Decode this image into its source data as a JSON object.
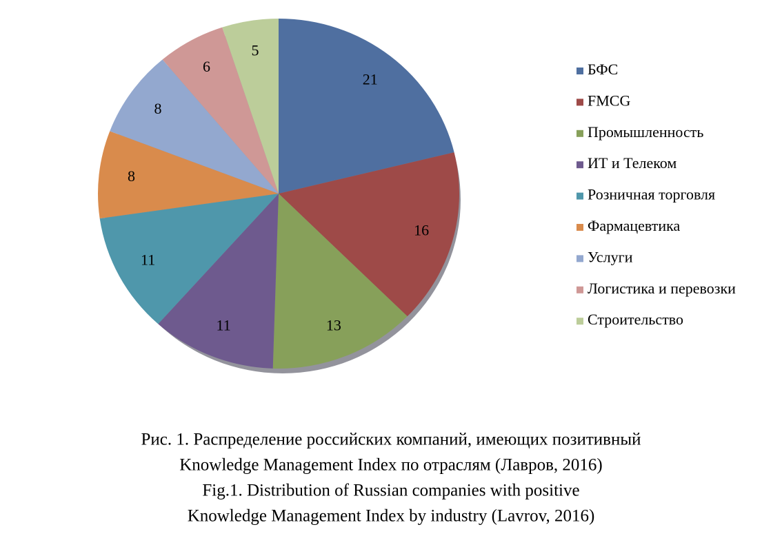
{
  "chart_data": {
    "type": "pie",
    "categories": [
      "БФС",
      "FMCG",
      "Промышленность",
      "ИТ и Телеком",
      "Розничная торговля",
      "Фармацевтика",
      "Услуги",
      "Логистика и перевозки",
      "Строительство"
    ],
    "values": [
      21,
      16,
      13,
      11,
      11,
      8,
      8,
      6,
      5
    ],
    "colors": [
      "#4f6fa0",
      "#9e4a48",
      "#87a05a",
      "#6e5a8e",
      "#4f97ab",
      "#d98b4c",
      "#93a8cf",
      "#cf9896",
      "#bccd9a"
    ],
    "legend": "right",
    "caption": [
      "Рис. 1. Распределение российских компаний, имеющих позитивный",
      "Knowledge Management Index по отраслям (Лавров, 2016)",
      "Fig.1. Distribution of Russian companies with positive",
      "Knowledge Management Index by industry (Lavrov, 2016)"
    ]
  }
}
